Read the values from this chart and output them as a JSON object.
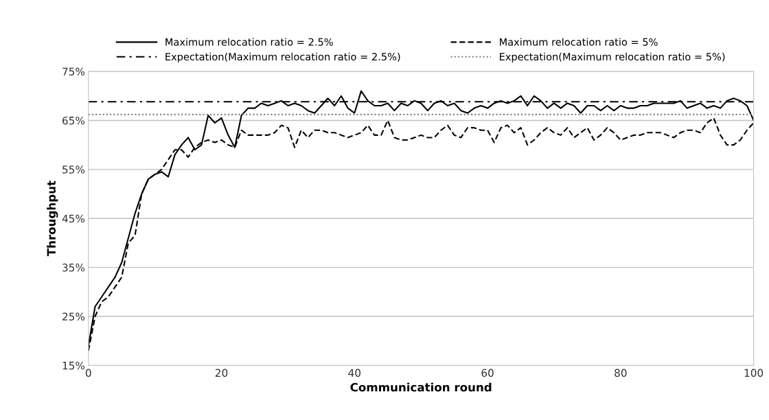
{
  "chart_data": {
    "type": "line",
    "xlabel": "Communication round",
    "ylabel": "Throughput",
    "x": [
      0,
      1,
      2,
      3,
      4,
      5,
      6,
      7,
      8,
      9,
      10,
      11,
      12,
      13,
      14,
      15,
      16,
      17,
      18,
      19,
      20,
      21,
      22,
      23,
      24,
      25,
      26,
      27,
      28,
      29,
      30,
      31,
      32,
      33,
      34,
      35,
      36,
      37,
      38,
      39,
      40,
      41,
      42,
      43,
      44,
      45,
      46,
      47,
      48,
      49,
      50,
      51,
      52,
      53,
      54,
      55,
      56,
      57,
      58,
      59,
      60,
      61,
      62,
      63,
      64,
      65,
      66,
      67,
      68,
      69,
      70,
      71,
      72,
      73,
      74,
      75,
      76,
      77,
      78,
      79,
      80,
      81,
      82,
      83,
      84,
      85,
      86,
      87,
      88,
      89,
      90,
      91,
      92,
      93,
      94,
      95,
      96,
      97,
      98,
      99,
      100
    ],
    "series": [
      {
        "name": "Maximum relocation ratio = 2.5%",
        "color": "#000000",
        "line_style": "solid",
        "values": [
          19,
          27,
          29,
          31,
          33,
          36,
          41,
          46,
          50,
          53,
          54,
          54.5,
          53.5,
          58,
          60,
          61.5,
          59,
          60,
          66,
          64.5,
          65.5,
          62,
          59.5,
          66,
          67.5,
          67.5,
          68.5,
          68,
          68.5,
          69,
          68,
          68.5,
          68,
          67,
          66.5,
          68,
          69.5,
          68,
          70,
          67.5,
          66.5,
          71,
          69,
          68,
          68,
          68.5,
          67,
          68.5,
          68,
          69,
          68.5,
          67,
          68.5,
          69,
          68,
          68.5,
          67,
          66.5,
          67.5,
          68,
          67.5,
          68.5,
          69,
          68.5,
          69,
          70,
          68,
          70,
          69,
          67.5,
          68.5,
          67.5,
          68.5,
          68,
          66.5,
          68,
          68,
          67,
          68,
          67,
          68,
          67.5,
          67.5,
          68,
          68,
          68.5,
          68.5,
          68.5,
          68.5,
          69,
          67.5,
          68,
          68.5,
          67.5,
          68,
          67.5,
          69,
          69.5,
          69,
          68,
          65
        ]
      },
      {
        "name": "Maximum relocation ratio = 5%",
        "color": "#000000",
        "line_style": "dashed",
        "values": [
          18,
          25,
          28,
          29,
          31,
          33,
          40,
          41.5,
          50,
          53,
          54,
          55,
          57,
          59,
          59,
          57.5,
          59.5,
          60.5,
          61,
          60.5,
          61,
          60,
          59.5,
          63,
          62,
          62,
          62,
          62,
          62.5,
          64,
          63.5,
          59.5,
          63,
          61.5,
          63,
          63,
          62.5,
          62.5,
          62,
          61.5,
          62,
          62.5,
          64,
          62,
          62,
          65,
          61.5,
          61,
          61,
          61.5,
          62,
          61.5,
          61.5,
          63,
          64,
          62,
          61.5,
          63.5,
          63.5,
          63,
          63,
          60.5,
          63.5,
          64,
          62.5,
          63.5,
          60,
          61,
          62.5,
          63.5,
          62.5,
          62,
          63.5,
          61.5,
          62.5,
          63.5,
          61,
          62,
          63.5,
          62.5,
          61,
          61.5,
          62,
          62,
          62.5,
          62.5,
          62.5,
          62,
          61.5,
          62.5,
          63,
          63,
          62.5,
          64.5,
          65.5,
          62,
          60,
          60,
          61,
          63,
          64.5
        ]
      },
      {
        "name": "Expectation(Maximum relocation ratio = 2.5%)",
        "color": "#000000",
        "line_style": "dashdot",
        "values": [
          68.8,
          68.8,
          68.8,
          68.8,
          68.8,
          68.8,
          68.8,
          68.8,
          68.8,
          68.8,
          68.8,
          68.8,
          68.8,
          68.8,
          68.8,
          68.8,
          68.8,
          68.8,
          68.8,
          68.8,
          68.8,
          68.8,
          68.8,
          68.8,
          68.8,
          68.8,
          68.8,
          68.8,
          68.8,
          68.8,
          68.8,
          68.8,
          68.8,
          68.8,
          68.8,
          68.8,
          68.8,
          68.8,
          68.8,
          68.8,
          68.8,
          68.8,
          68.8,
          68.8,
          68.8,
          68.8,
          68.8,
          68.8,
          68.8,
          68.8,
          68.8,
          68.8,
          68.8,
          68.8,
          68.8,
          68.8,
          68.8,
          68.8,
          68.8,
          68.8,
          68.8,
          68.8,
          68.8,
          68.8,
          68.8,
          68.8,
          68.8,
          68.8,
          68.8,
          68.8,
          68.8,
          68.8,
          68.8,
          68.8,
          68.8,
          68.8,
          68.8,
          68.8,
          68.8,
          68.8,
          68.8,
          68.8,
          68.8,
          68.8,
          68.8,
          68.8,
          68.8,
          68.8,
          68.8,
          68.8,
          68.8,
          68.8,
          68.8,
          68.8,
          68.8,
          68.8,
          68.8,
          68.8,
          68.8,
          68.8,
          68.8
        ]
      },
      {
        "name": "Expectation(Maximum relocation ratio = 5%)",
        "color": "#808080",
        "line_style": "dotted",
        "values": [
          66.2,
          66.2,
          66.2,
          66.2,
          66.2,
          66.2,
          66.2,
          66.2,
          66.2,
          66.2,
          66.2,
          66.2,
          66.2,
          66.2,
          66.2,
          66.2,
          66.2,
          66.2,
          66.2,
          66.2,
          66.2,
          66.2,
          66.2,
          66.2,
          66.2,
          66.2,
          66.2,
          66.2,
          66.2,
          66.2,
          66.2,
          66.2,
          66.2,
          66.2,
          66.2,
          66.2,
          66.2,
          66.2,
          66.2,
          66.2,
          66.2,
          66.2,
          66.2,
          66.2,
          66.2,
          66.2,
          66.2,
          66.2,
          66.2,
          66.2,
          66.2,
          66.2,
          66.2,
          66.2,
          66.2,
          66.2,
          66.2,
          66.2,
          66.2,
          66.2,
          66.2,
          66.2,
          66.2,
          66.2,
          66.2,
          66.2,
          66.2,
          66.2,
          66.2,
          66.2,
          66.2,
          66.2,
          66.2,
          66.2,
          66.2,
          66.2,
          66.2,
          66.2,
          66.2,
          66.2,
          66.2,
          66.2,
          66.2,
          66.2,
          66.2,
          66.2,
          66.2,
          66.2,
          66.2,
          66.2,
          66.2,
          66.2,
          66.2,
          66.2,
          66.2,
          66.2,
          66.2,
          66.2,
          66.2,
          66.2,
          66.2
        ]
      }
    ],
    "xlim": [
      0,
      100
    ],
    "xticks": [
      0,
      20,
      40,
      60,
      80,
      100
    ],
    "ylim": [
      15,
      75
    ],
    "yticks": [
      {
        "value": 15,
        "label": "15%"
      },
      {
        "value": 25,
        "label": "25%"
      },
      {
        "value": 35,
        "label": "35%"
      },
      {
        "value": 45,
        "label": "45%"
      },
      {
        "value": 55,
        "label": "55%"
      },
      {
        "value": 65,
        "label": "65%"
      },
      {
        "value": 75,
        "label": "75%"
      }
    ],
    "grid": "y",
    "legend": "top"
  }
}
